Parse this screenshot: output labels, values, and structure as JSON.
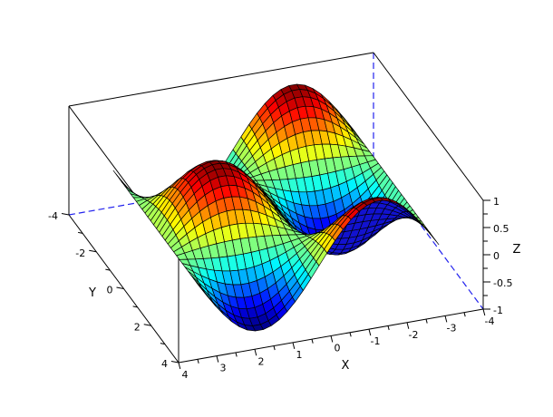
{
  "figure": {
    "background": "#ffffff"
  },
  "chart_data": {
    "type": "surface",
    "title": "",
    "function": "z = sin(x) * cos(y)",
    "x_domain": [
      -3.14159265,
      3.14159265
    ],
    "y_domain": [
      -3.14159265,
      3.14159265
    ],
    "grid_points": 31,
    "z_range": [
      -1,
      1
    ],
    "colormap": "jet",
    "mesh_line_color": "#000000",
    "hidden_face_color": "#1212cf",
    "box_edge_color": "#000000",
    "hidden_edge_color": "#2222ee",
    "legend": "none",
    "grid": "off",
    "axes": {
      "x": {
        "label": "X",
        "min": -4,
        "max": 4,
        "major_ticks": [
          4,
          3,
          2,
          1,
          0,
          -1,
          -2,
          -3,
          -4
        ],
        "tick_labels": [
          "4",
          "3",
          "2",
          "1",
          "0",
          "-1",
          "-2",
          "-3",
          "-4"
        ],
        "minor_ticks": [
          3.5,
          2.5,
          1.5,
          0.5,
          -0.5,
          -1.5,
          -2.5,
          -3.5
        ]
      },
      "y": {
        "label": "Y",
        "min": -4,
        "max": 4,
        "major_ticks": [
          -4,
          -2,
          0,
          2,
          4
        ],
        "tick_labels": [
          "-4",
          "-2",
          "0",
          "2",
          "4"
        ],
        "minor_ticks": [
          -3,
          -1,
          1,
          3
        ]
      },
      "z": {
        "label": "Z",
        "min": -1,
        "max": 1,
        "major_ticks": [
          1,
          0.5,
          0,
          -0.5,
          -1
        ],
        "tick_labels": [
          "1",
          "0.5",
          "0",
          "-0.5",
          "-1"
        ],
        "minor_ticks": [
          0.75,
          0.25,
          -0.25,
          -0.75
        ]
      }
    }
  }
}
